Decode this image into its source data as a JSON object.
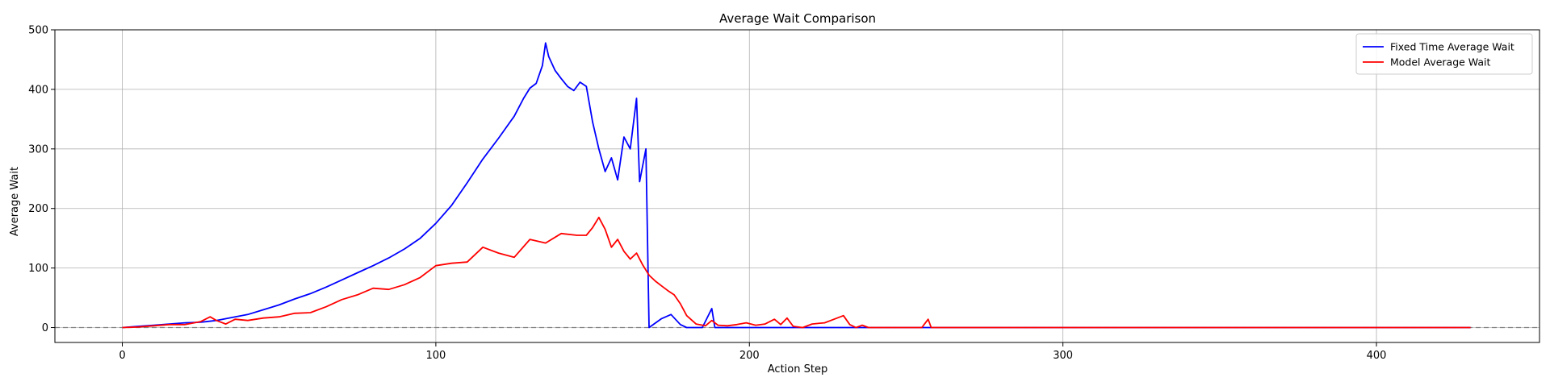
{
  "chart_data": {
    "type": "line",
    "title": "Average Wait Comparison",
    "xlabel": "Action Step",
    "ylabel": "Average Wait",
    "xlim": [
      -21.5,
      452
    ],
    "ylim": [
      -25,
      500
    ],
    "xticks": [
      0,
      100,
      200,
      300,
      400
    ],
    "yticks": [
      0,
      100,
      200,
      300,
      400,
      500
    ],
    "grid": true,
    "legend_position": "top-right",
    "reference_line": {
      "y": 0,
      "style": "dashed",
      "color": "#808080"
    },
    "series": [
      {
        "name": "Fixed Time Average Wait",
        "color": "#0000ff",
        "points": [
          [
            0,
            0
          ],
          [
            5,
            2
          ],
          [
            10,
            4
          ],
          [
            15,
            6
          ],
          [
            20,
            8
          ],
          [
            25,
            9
          ],
          [
            30,
            12
          ],
          [
            35,
            17
          ],
          [
            40,
            22
          ],
          [
            45,
            30
          ],
          [
            50,
            38
          ],
          [
            55,
            48
          ],
          [
            60,
            57
          ],
          [
            65,
            68
          ],
          [
            70,
            80
          ],
          [
            75,
            92
          ],
          [
            80,
            104
          ],
          [
            85,
            117
          ],
          [
            90,
            132
          ],
          [
            95,
            150
          ],
          [
            100,
            175
          ],
          [
            105,
            205
          ],
          [
            110,
            243
          ],
          [
            115,
            283
          ],
          [
            120,
            318
          ],
          [
            125,
            355
          ],
          [
            128,
            385
          ],
          [
            130,
            402
          ],
          [
            132,
            410
          ],
          [
            134,
            440
          ],
          [
            135,
            478
          ],
          [
            136,
            455
          ],
          [
            138,
            432
          ],
          [
            140,
            418
          ],
          [
            142,
            405
          ],
          [
            144,
            398
          ],
          [
            146,
            412
          ],
          [
            148,
            405
          ],
          [
            150,
            345
          ],
          [
            152,
            300
          ],
          [
            154,
            262
          ],
          [
            156,
            285
          ],
          [
            158,
            248
          ],
          [
            160,
            320
          ],
          [
            162,
            300
          ],
          [
            164,
            385
          ],
          [
            165,
            245
          ],
          [
            167,
            300
          ],
          [
            168,
            0
          ],
          [
            172,
            15
          ],
          [
            175,
            22
          ],
          [
            178,
            5
          ],
          [
            180,
            0
          ],
          [
            185,
            0
          ],
          [
            188,
            32
          ],
          [
            189,
            0
          ],
          [
            430,
            0
          ]
        ]
      },
      {
        "name": "Model Average Wait",
        "color": "#ff0000",
        "points": [
          [
            0,
            0
          ],
          [
            5,
            1
          ],
          [
            10,
            3
          ],
          [
            15,
            5
          ],
          [
            20,
            5
          ],
          [
            25,
            10
          ],
          [
            28,
            18
          ],
          [
            30,
            12
          ],
          [
            33,
            6
          ],
          [
            36,
            14
          ],
          [
            40,
            12
          ],
          [
            45,
            16
          ],
          [
            50,
            18
          ],
          [
            55,
            24
          ],
          [
            60,
            25
          ],
          [
            65,
            35
          ],
          [
            70,
            47
          ],
          [
            75,
            55
          ],
          [
            80,
            66
          ],
          [
            85,
            64
          ],
          [
            90,
            72
          ],
          [
            95,
            84
          ],
          [
            100,
            104
          ],
          [
            105,
            108
          ],
          [
            110,
            110
          ],
          [
            115,
            135
          ],
          [
            120,
            125
          ],
          [
            125,
            118
          ],
          [
            130,
            148
          ],
          [
            135,
            142
          ],
          [
            140,
            158
          ],
          [
            145,
            155
          ],
          [
            148,
            155
          ],
          [
            150,
            168
          ],
          [
            152,
            185
          ],
          [
            154,
            165
          ],
          [
            156,
            135
          ],
          [
            158,
            148
          ],
          [
            160,
            128
          ],
          [
            162,
            115
          ],
          [
            164,
            125
          ],
          [
            166,
            105
          ],
          [
            168,
            88
          ],
          [
            170,
            78
          ],
          [
            172,
            70
          ],
          [
            174,
            62
          ],
          [
            176,
            55
          ],
          [
            178,
            40
          ],
          [
            180,
            20
          ],
          [
            183,
            6
          ],
          [
            186,
            3
          ],
          [
            188,
            12
          ],
          [
            190,
            4
          ],
          [
            193,
            3
          ],
          [
            196,
            5
          ],
          [
            199,
            8
          ],
          [
            202,
            4
          ],
          [
            205,
            6
          ],
          [
            208,
            14
          ],
          [
            210,
            5
          ],
          [
            212,
            16
          ],
          [
            214,
            2
          ],
          [
            217,
            0
          ],
          [
            220,
            6
          ],
          [
            224,
            8
          ],
          [
            227,
            14
          ],
          [
            230,
            20
          ],
          [
            232,
            5
          ],
          [
            234,
            0
          ],
          [
            236,
            4
          ],
          [
            238,
            0
          ],
          [
            255,
            0
          ],
          [
            257,
            14
          ],
          [
            258,
            0
          ],
          [
            430,
            0
          ]
        ]
      }
    ]
  }
}
